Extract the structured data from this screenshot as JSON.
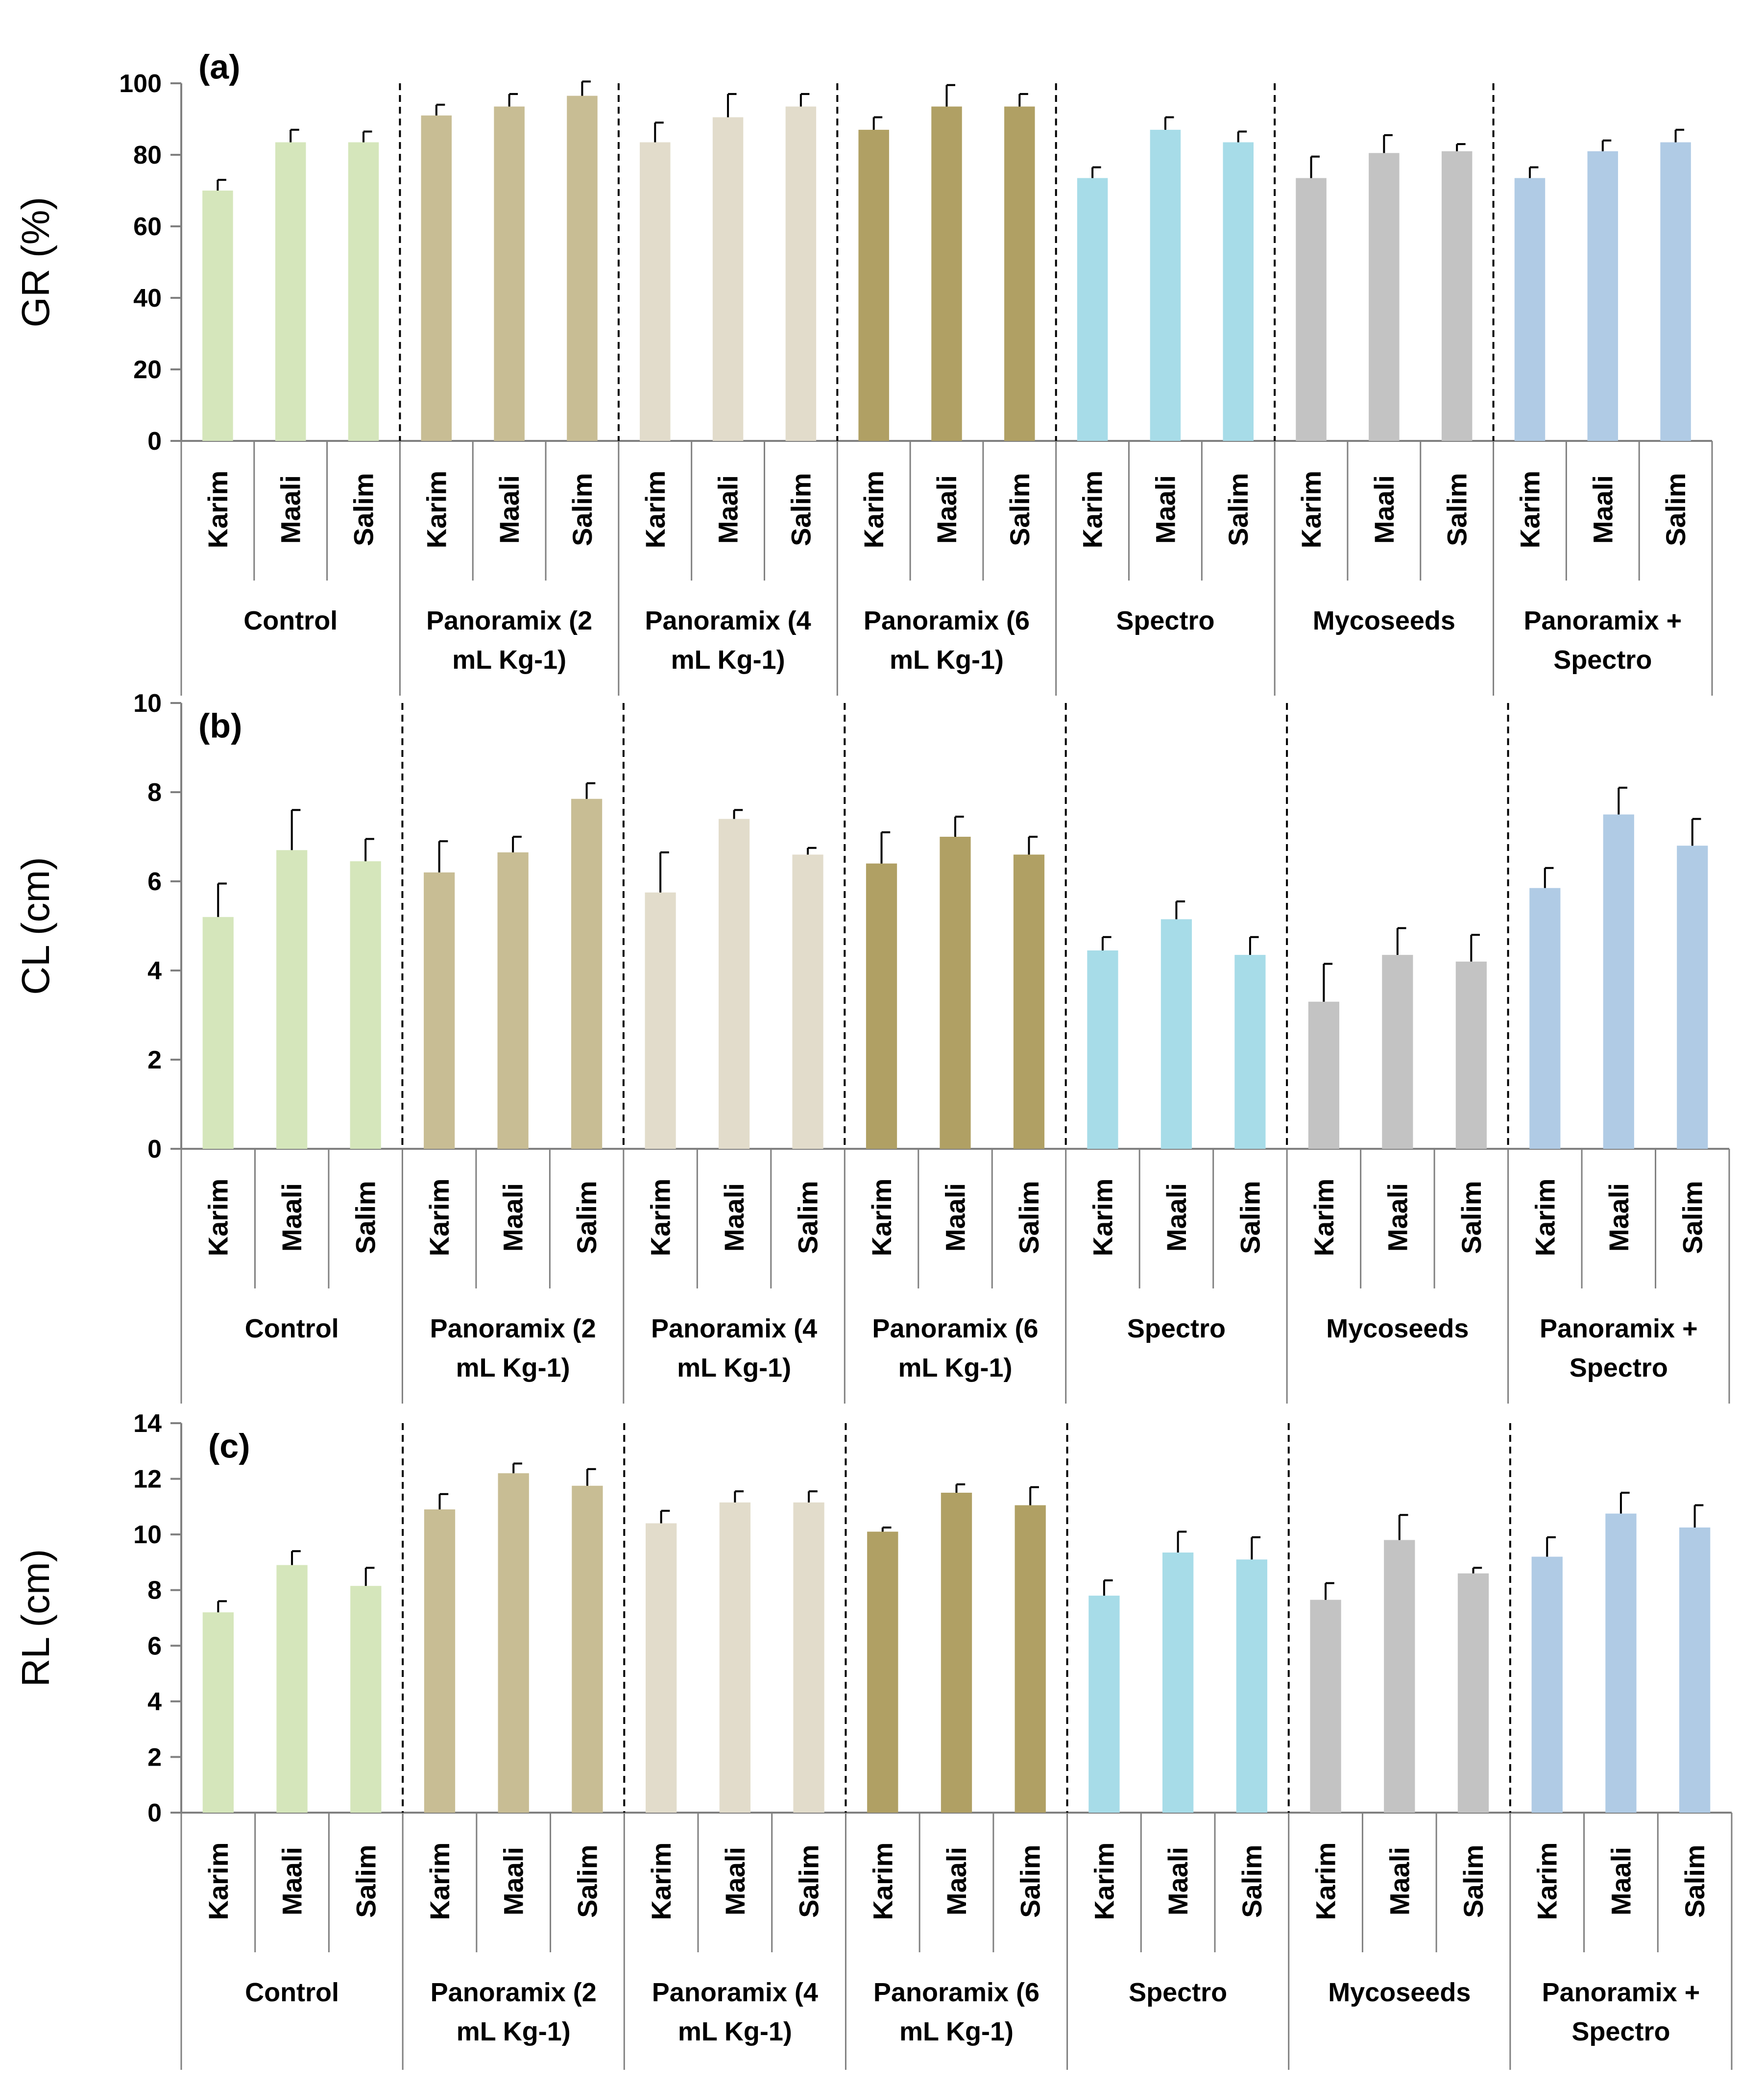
{
  "colors": {
    "control": "#d5e6bb",
    "panoramix_2": "#c8bd94",
    "panoramix_4": "#e2dccb",
    "panoramix_6": "#b0a064",
    "spectro": "#a7dce8",
    "mycoseeds": "#c3c3c3",
    "panoramix_spectro": "#b0cbe5",
    "axis": "#808080",
    "error_bar": "#000000",
    "divider": "#000000"
  },
  "chart_data": [
    {
      "type": "bar",
      "panel_label": "(a)",
      "ylabel": "GR (%)",
      "ylim": [
        0,
        100
      ],
      "yticks": [
        "0",
        "20",
        "40",
        "60",
        "80",
        "100"
      ],
      "groups": [
        {
          "label_lines": [
            "Control"
          ],
          "color_key": "control",
          "varieties": [
            "Karim",
            "Maali",
            "Salim"
          ],
          "values": [
            70,
            83.5,
            83.5
          ],
          "errors": [
            3,
            3.5,
            3
          ]
        },
        {
          "label_lines": [
            "Panoramix  (2",
            "mL Kg-1)"
          ],
          "color_key": "panoramix_2",
          "varieties": [
            "Karim",
            "Maali",
            "Salim"
          ],
          "values": [
            91,
            93.5,
            96.5
          ],
          "errors": [
            3,
            3.5,
            4
          ]
        },
        {
          "label_lines": [
            "Panoramix  (4",
            "mL Kg-1)"
          ],
          "color_key": "panoramix_4",
          "varieties": [
            "Karim",
            "Maali",
            "Salim"
          ],
          "values": [
            83.5,
            90.5,
            93.5
          ],
          "errors": [
            5.5,
            6.5,
            3.5
          ]
        },
        {
          "label_lines": [
            "Panoramix  (6",
            "mL Kg-1)"
          ],
          "color_key": "panoramix_6",
          "varieties": [
            "Karim",
            "Maali",
            "Salim"
          ],
          "values": [
            87,
            93.5,
            93.5
          ],
          "errors": [
            3.5,
            6,
            3.5
          ]
        },
        {
          "label_lines": [
            "Spectro"
          ],
          "color_key": "spectro",
          "varieties": [
            "Karim",
            "Maali",
            "Salim"
          ],
          "values": [
            73.5,
            87,
            83.5
          ],
          "errors": [
            3,
            3.5,
            3
          ]
        },
        {
          "label_lines": [
            "Mycoseeds"
          ],
          "color_key": "mycoseeds",
          "varieties": [
            "Karim",
            "Maali",
            "Salim"
          ],
          "values": [
            73.5,
            80.5,
            81
          ],
          "errors": [
            6,
            5,
            2
          ]
        },
        {
          "label_lines": [
            "Panoramix +",
            "Spectro"
          ],
          "color_key": "panoramix_spectro",
          "varieties": [
            "Karim",
            "Maali",
            "Salim"
          ],
          "values": [
            73.5,
            81,
            83.5
          ],
          "errors": [
            3,
            3,
            3.5
          ]
        }
      ]
    },
    {
      "type": "bar",
      "panel_label": "(b)",
      "ylabel": "CL (cm)",
      "ylim": [
        0,
        10
      ],
      "yticks": [
        "0",
        "2",
        "4",
        "6",
        "8",
        "10"
      ],
      "groups": [
        {
          "label_lines": [
            "Control"
          ],
          "color_key": "control",
          "varieties": [
            "Karim",
            "Maali",
            "Salim"
          ],
          "values": [
            5.2,
            6.7,
            6.45
          ],
          "errors": [
            0.75,
            0.9,
            0.5
          ]
        },
        {
          "label_lines": [
            "Panoramix  (2",
            "mL Kg-1)"
          ],
          "color_key": "panoramix_2",
          "varieties": [
            "Karim",
            "Maali",
            "Salim"
          ],
          "values": [
            6.2,
            6.65,
            7.85
          ],
          "errors": [
            0.7,
            0.35,
            0.35
          ]
        },
        {
          "label_lines": [
            "Panoramix  (4",
            "mL Kg-1)"
          ],
          "color_key": "panoramix_4",
          "varieties": [
            "Karim",
            "Maali",
            "Salim"
          ],
          "values": [
            5.75,
            7.4,
            6.6
          ],
          "errors": [
            0.9,
            0.2,
            0.15
          ]
        },
        {
          "label_lines": [
            "Panoramix  (6",
            "mL Kg-1)"
          ],
          "color_key": "panoramix_6",
          "varieties": [
            "Karim",
            "Maali",
            "Salim"
          ],
          "values": [
            6.4,
            7.0,
            6.6
          ],
          "errors": [
            0.7,
            0.45,
            0.4
          ]
        },
        {
          "label_lines": [
            "Spectro"
          ],
          "color_key": "spectro",
          "varieties": [
            "Karim",
            "Maali",
            "Salim"
          ],
          "values": [
            4.45,
            5.15,
            4.35
          ],
          "errors": [
            0.3,
            0.4,
            0.4
          ]
        },
        {
          "label_lines": [
            "Mycoseeds"
          ],
          "color_key": "mycoseeds",
          "varieties": [
            "Karim",
            "Maali",
            "Salim"
          ],
          "values": [
            3.3,
            4.35,
            4.2
          ],
          "errors": [
            0.85,
            0.6,
            0.6
          ]
        },
        {
          "label_lines": [
            "Panoramix +",
            "Spectro"
          ],
          "color_key": "panoramix_spectro",
          "varieties": [
            "Karim",
            "Maali",
            "Salim"
          ],
          "values": [
            5.85,
            7.5,
            6.8
          ],
          "errors": [
            0.45,
            0.6,
            0.6
          ]
        }
      ]
    },
    {
      "type": "bar",
      "panel_label": "(c)",
      "ylabel": "RL (cm)",
      "ylim": [
        0,
        14
      ],
      "yticks": [
        "0",
        "2",
        "4",
        "6",
        "8",
        "10",
        "12",
        "14"
      ],
      "groups": [
        {
          "label_lines": [
            "Control"
          ],
          "color_key": "control",
          "varieties": [
            "Karim",
            "Maali",
            "Salim"
          ],
          "values": [
            7.2,
            8.9,
            8.15
          ],
          "errors": [
            0.4,
            0.5,
            0.65
          ]
        },
        {
          "label_lines": [
            "Panoramix  (2",
            "mL Kg-1)"
          ],
          "color_key": "panoramix_2",
          "varieties": [
            "Karim",
            "Maali",
            "Salim"
          ],
          "values": [
            10.9,
            12.2,
            11.75
          ],
          "errors": [
            0.55,
            0.35,
            0.6
          ]
        },
        {
          "label_lines": [
            "Panoramix  (4",
            "mL Kg-1)"
          ],
          "color_key": "panoramix_4",
          "varieties": [
            "Karim",
            "Maali",
            "Salim"
          ],
          "values": [
            10.4,
            11.15,
            11.15
          ],
          "errors": [
            0.45,
            0.4,
            0.4
          ]
        },
        {
          "label_lines": [
            "Panoramix  (6",
            "mL Kg-1)"
          ],
          "color_key": "panoramix_6",
          "varieties": [
            "Karim",
            "Maali",
            "Salim"
          ],
          "values": [
            10.1,
            11.5,
            11.05
          ],
          "errors": [
            0.15,
            0.3,
            0.65
          ]
        },
        {
          "label_lines": [
            "Spectro"
          ],
          "color_key": "spectro",
          "varieties": [
            "Karim",
            "Maali",
            "Salim"
          ],
          "values": [
            7.8,
            9.35,
            9.1
          ],
          "errors": [
            0.55,
            0.75,
            0.8
          ]
        },
        {
          "label_lines": [
            "Mycoseeds"
          ],
          "color_key": "mycoseeds",
          "varieties": [
            "Karim",
            "Maali",
            "Salim"
          ],
          "values": [
            7.65,
            9.8,
            8.6
          ],
          "errors": [
            0.6,
            0.9,
            0.2
          ]
        },
        {
          "label_lines": [
            "Panoramix +",
            "Spectro"
          ],
          "color_key": "panoramix_spectro",
          "varieties": [
            "Karim",
            "Maali",
            "Salim"
          ],
          "values": [
            9.2,
            10.75,
            10.25
          ],
          "errors": [
            0.7,
            0.75,
            0.8
          ]
        }
      ]
    }
  ]
}
